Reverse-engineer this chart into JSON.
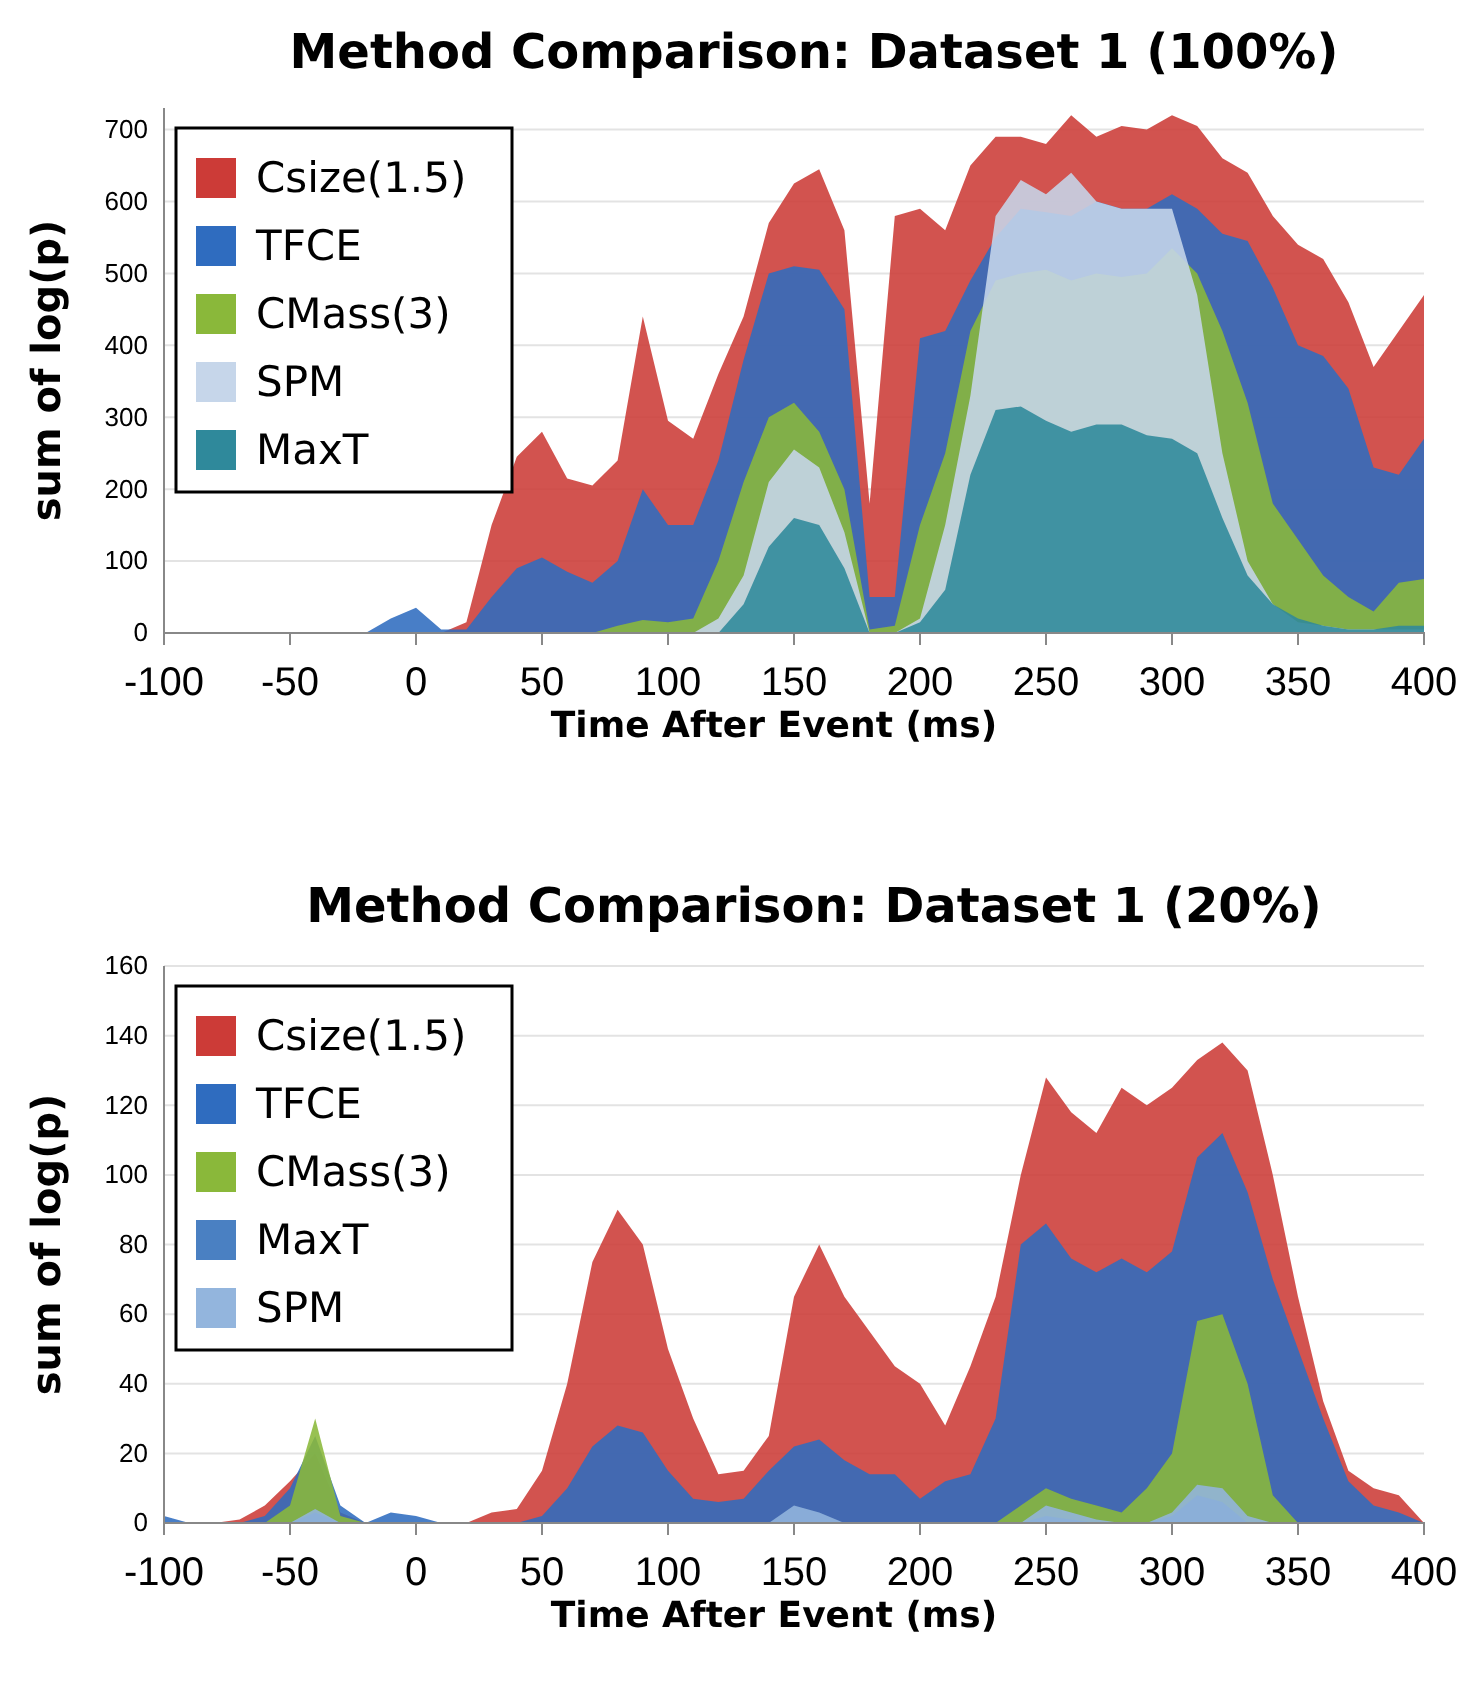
{
  "chart_data": [
    {
      "type": "area",
      "title": "Method Comparison: Dataset 1 (100%)",
      "xlabel": "Time After Event (ms)",
      "ylabel": "sum of log(p)",
      "xlim": [
        -100,
        400
      ],
      "xticks": [
        -100,
        -50,
        0,
        50,
        100,
        150,
        200,
        250,
        300,
        350,
        400
      ],
      "ylim": [
        0,
        730
      ],
      "yticks": [
        0,
        100,
        200,
        300,
        400,
        500,
        600,
        700
      ],
      "grid": "y",
      "legend": "top left",
      "x": [
        -100,
        -90,
        -80,
        -70,
        -60,
        -50,
        -40,
        -30,
        -20,
        -10,
        0,
        10,
        20,
        30,
        40,
        50,
        60,
        70,
        80,
        90,
        100,
        110,
        120,
        130,
        140,
        150,
        160,
        170,
        180,
        190,
        200,
        210,
        220,
        230,
        240,
        250,
        260,
        270,
        280,
        290,
        300,
        310,
        320,
        330,
        340,
        350,
        360,
        370,
        380,
        390,
        400
      ],
      "series": [
        {
          "name": "Csize(1.5)",
          "color": "#cc3b37",
          "values": [
            0,
            0,
            0,
            0,
            0,
            0,
            0,
            0,
            0,
            0,
            0,
            0,
            15,
            150,
            245,
            280,
            215,
            205,
            240,
            440,
            295,
            270,
            360,
            440,
            570,
            625,
            645,
            560,
            180,
            580,
            590,
            560,
            650,
            690,
            690,
            680,
            720,
            690,
            705,
            700,
            720,
            705,
            660,
            640,
            580,
            540,
            520,
            460,
            370,
            420,
            470
          ]
        },
        {
          "name": "TFCE",
          "color": "#2f6cbf",
          "values": [
            0,
            0,
            0,
            0,
            0,
            0,
            0,
            0,
            0,
            20,
            35,
            5,
            5,
            50,
            90,
            105,
            85,
            70,
            100,
            200,
            150,
            150,
            240,
            380,
            500,
            510,
            505,
            450,
            50,
            50,
            410,
            420,
            490,
            550,
            590,
            585,
            580,
            600,
            590,
            590,
            610,
            590,
            555,
            545,
            480,
            400,
            385,
            340,
            230,
            220,
            270
          ]
        },
        {
          "name": "CMass(3)",
          "color": "#8ab83a",
          "values": [
            0,
            0,
            0,
            0,
            0,
            0,
            0,
            0,
            0,
            0,
            0,
            0,
            0,
            0,
            0,
            0,
            0,
            0,
            10,
            18,
            15,
            20,
            100,
            210,
            300,
            320,
            280,
            200,
            5,
            10,
            150,
            250,
            420,
            490,
            500,
            505,
            490,
            500,
            495,
            500,
            535,
            500,
            420,
            320,
            180,
            130,
            80,
            50,
            30,
            70,
            75
          ]
        },
        {
          "name": "SPM",
          "color": "#c6d6ea",
          "values": [
            0,
            0,
            0,
            0,
            0,
            0,
            0,
            0,
            0,
            0,
            0,
            0,
            0,
            0,
            0,
            0,
            0,
            0,
            0,
            0,
            0,
            0,
            20,
            80,
            210,
            255,
            230,
            140,
            0,
            0,
            20,
            150,
            330,
            580,
            630,
            610,
            640,
            600,
            590,
            590,
            590,
            470,
            250,
            100,
            40,
            15,
            10,
            5,
            5,
            5,
            5
          ]
        },
        {
          "name": "MaxT",
          "color": "#2f899b",
          "values": [
            0,
            0,
            0,
            0,
            0,
            0,
            0,
            0,
            0,
            0,
            0,
            0,
            0,
            0,
            0,
            0,
            0,
            0,
            0,
            0,
            0,
            0,
            0,
            40,
            120,
            160,
            150,
            90,
            0,
            0,
            15,
            60,
            220,
            310,
            315,
            295,
            280,
            290,
            290,
            275,
            270,
            250,
            160,
            80,
            40,
            20,
            10,
            5,
            5,
            10,
            10
          ]
        }
      ]
    },
    {
      "type": "area",
      "title": "Method Comparison: Dataset 1 (20%)",
      "xlabel": "Time After Event (ms)",
      "ylabel": "sum of log(p)",
      "xlim": [
        -100,
        400
      ],
      "xticks": [
        -100,
        -50,
        0,
        50,
        100,
        150,
        200,
        250,
        300,
        350,
        400
      ],
      "ylim": [
        0,
        160
      ],
      "yticks": [
        0,
        20,
        40,
        60,
        80,
        100,
        120,
        140,
        160
      ],
      "grid": "y",
      "legend": "top left",
      "x": [
        -100,
        -90,
        -80,
        -70,
        -60,
        -50,
        -40,
        -30,
        -20,
        -10,
        0,
        10,
        20,
        30,
        40,
        50,
        60,
        70,
        80,
        90,
        100,
        110,
        120,
        130,
        140,
        150,
        160,
        170,
        180,
        190,
        200,
        210,
        220,
        230,
        240,
        250,
        260,
        270,
        280,
        290,
        300,
        310,
        320,
        330,
        340,
        350,
        360,
        370,
        380,
        390,
        400
      ],
      "series": [
        {
          "name": "Csize(1.5)",
          "color": "#cc3b37",
          "values": [
            0,
            0,
            0,
            1,
            5,
            12,
            20,
            3,
            0,
            0,
            0,
            0,
            0,
            3,
            4,
            15,
            40,
            75,
            90,
            80,
            50,
            30,
            14,
            15,
            25,
            65,
            80,
            65,
            55,
            45,
            40,
            28,
            45,
            65,
            100,
            128,
            118,
            112,
            125,
            120,
            125,
            133,
            138,
            130,
            100,
            65,
            35,
            15,
            10,
            8,
            0
          ]
        },
        {
          "name": "TFCE",
          "color": "#2f6cbf",
          "values": [
            2,
            0,
            0,
            0,
            2,
            10,
            25,
            5,
            0,
            3,
            2,
            0,
            0,
            0,
            0,
            2,
            10,
            22,
            28,
            26,
            15,
            7,
            6,
            7,
            15,
            22,
            24,
            18,
            14,
            14,
            7,
            12,
            14,
            30,
            80,
            86,
            76,
            72,
            76,
            72,
            78,
            105,
            112,
            95,
            70,
            50,
            30,
            12,
            5,
            3,
            0
          ]
        },
        {
          "name": "CMass(3)",
          "color": "#8ab83a",
          "values": [
            0,
            0,
            0,
            0,
            0,
            5,
            30,
            2,
            0,
            0,
            0,
            0,
            0,
            0,
            0,
            0,
            0,
            0,
            0,
            0,
            0,
            0,
            0,
            0,
            0,
            0,
            0,
            0,
            0,
            0,
            0,
            0,
            0,
            0,
            5,
            10,
            7,
            5,
            3,
            10,
            20,
            58,
            60,
            40,
            8,
            0,
            0,
            0,
            0,
            0,
            0
          ]
        },
        {
          "name": "MaxT",
          "color": "#4a80c2",
          "values": [
            0,
            0,
            0,
            0,
            0,
            0,
            3,
            0,
            0,
            0,
            0,
            0,
            0,
            0,
            0,
            0,
            0,
            0,
            0,
            0,
            0,
            0,
            0,
            0,
            0,
            0,
            0,
            0,
            0,
            0,
            0,
            0,
            0,
            0,
            0,
            2,
            1,
            0,
            0,
            0,
            2,
            8,
            6,
            0,
            0,
            0,
            0,
            0,
            0,
            0,
            0
          ]
        },
        {
          "name": "SPM",
          "color": "#93b5dd",
          "values": [
            0,
            0,
            0,
            0,
            0,
            0,
            4,
            0,
            0,
            0,
            0,
            0,
            0,
            0,
            0,
            0,
            0,
            0,
            0,
            0,
            0,
            0,
            0,
            0,
            0,
            5,
            3,
            0,
            0,
            0,
            0,
            0,
            0,
            0,
            0,
            5,
            3,
            1,
            0,
            0,
            3,
            11,
            10,
            2,
            0,
            0,
            0,
            0,
            0,
            0,
            0
          ]
        }
      ]
    }
  ]
}
